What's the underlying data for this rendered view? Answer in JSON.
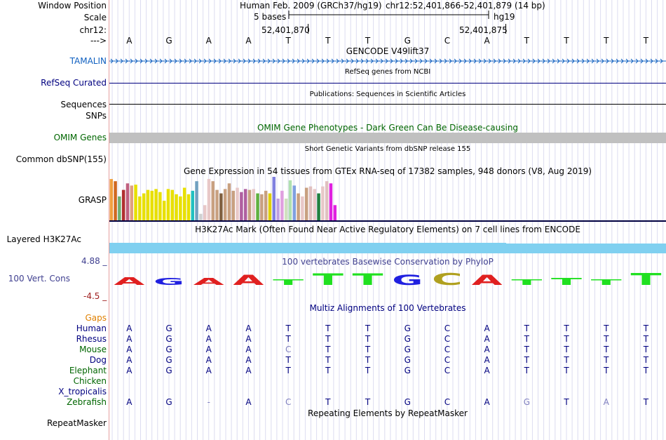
{
  "header": {
    "labels": {
      "window_position": "Window Position",
      "scale": "Scale",
      "chr": "chr12:",
      "arrow": "--->"
    },
    "assembly": "Human Feb. 2009 (GRCh37/hg19)",
    "position": "chr12:52,401,866-52,401,879 (14 bp)",
    "scale_text": "5 bases",
    "scale_db": "hg19",
    "coord1": "52,401,870",
    "coord2": "52,401,875"
  },
  "bases": [
    "A",
    "G",
    "A",
    "A",
    "T",
    "T",
    "T",
    "G",
    "C",
    "A",
    "T",
    "T",
    "T",
    "T"
  ],
  "tracks": {
    "gencode_title": "GENCODE V49lift37",
    "tamalin_label": "TAMALIN",
    "refseq_title": "RefSeq genes from NCBI",
    "refseq_label": "RefSeq Curated",
    "pubs_title": "Publications: Sequences in Scientific Articles",
    "sequences_label": "Sequences",
    "snps_label": "SNPs",
    "omim_title": "OMIM Gene Phenotypes - Dark Green Can Be Disease-causing",
    "omim_label": "OMIM Genes",
    "dbsnp_title": "Short Genetic Variants from dbSNP release 155",
    "dbsnp_label": "Common dbSNP(155)",
    "gtex_title": "Gene Expression in 54 tissues from GTEx RNA-seq of 17382 samples, 948 donors (V8, Aug 2019)",
    "grasp_label": "GRASP",
    "h3k_title": "H3K27Ac Mark (Often Found Near Active Regulatory Elements) on 7 cell lines from ENCODE",
    "h3k_label": "Layered H3K27Ac",
    "cons_title": "100 vertebrates Basewise Conservation by PhyloP",
    "cons_label": "100 Vert. Cons",
    "cons_max": "4.88 _",
    "cons_min": "-4.5 _",
    "multiz_title": "Multiz Alignments of 100 Vertebrates",
    "repeat_title": "Repeating Elements by RepeatMasker",
    "repeat_label": "RepeatMasker",
    "gaps_label": "Gaps"
  },
  "gtex_values": [
    0.95,
    0.9,
    0.55,
    0.7,
    0.85,
    0.8,
    0.82,
    0.55,
    0.62,
    0.7,
    0.68,
    0.72,
    0.65,
    0.45,
    0.72,
    0.7,
    0.6,
    0.55,
    0.75,
    0.6,
    0.68,
    0.9,
    0.15,
    0.35,
    0.95,
    0.9,
    0.7,
    0.62,
    0.72,
    0.85,
    0.68,
    0.75,
    0.65,
    0.72,
    0.7,
    0.72,
    0.62,
    0.6,
    0.68,
    0.62,
    1.0,
    0.5,
    0.68,
    0.5,
    0.92,
    0.8,
    0.62,
    0.55,
    0.75,
    0.78,
    0.72,
    0.62,
    0.78,
    0.9,
    0.85,
    0.35
  ],
  "gtex_colors": [
    "#f0a040",
    "#d06820",
    "#70b070",
    "#b03030",
    "#c06080",
    "#e0a080",
    "#e8e000",
    "#e8e000",
    "#e8e000",
    "#e8e000",
    "#e8e000",
    "#e8e000",
    "#e8e000",
    "#e8e000",
    "#e8e000",
    "#e8e000",
    "#e8e000",
    "#e8e000",
    "#e8e000",
    "#e8e000",
    "#20c0c0",
    "#70a0c0",
    "#d0d0d0",
    "#e8c8c8",
    "#e8c8c8",
    "#c8a080",
    "#c8a080",
    "#806040",
    "#c8a080",
    "#c8a080",
    "#c8a080",
    "#e8c8c8",
    "#b060a0",
    "#b060a0",
    "#c8a080",
    "#e8c8c8",
    "#60b040",
    "#c8a080",
    "#c8a080",
    "#e0d000",
    "#8080e0",
    "#c0a0e0",
    "#e0a0e0",
    "#d0e0c0",
    "#b0e0b0",
    "#80a0e0",
    "#c8a080",
    "#e8c8c8",
    "#c8a080",
    "#e0c0c0",
    "#e8c8c8",
    "#208040",
    "#e8c8c8",
    "#e0c0c0",
    "#e020e0",
    "#e020e0"
  ],
  "conservation": {
    "bases": [
      "A",
      "G",
      "A",
      "A",
      "T",
      "T",
      "T",
      "G",
      "C",
      "A",
      "T",
      "T",
      "T",
      "T"
    ],
    "scores": [
      0.25,
      0.2,
      0.2,
      0.35,
      0.12,
      0.42,
      0.42,
      0.35,
      0.45,
      0.35,
      0.12,
      0.18,
      0.12,
      0.45
    ],
    "colors": {
      "A": "#e02020",
      "G": "#2020e0",
      "C": "#b0a020",
      "T": "#20e020"
    }
  },
  "multiz": {
    "species": [
      {
        "name": "Human",
        "color": "#000080",
        "seq": [
          "A",
          "G",
          "A",
          "A",
          "T",
          "T",
          "T",
          "G",
          "C",
          "A",
          "T",
          "T",
          "T",
          "T"
        ],
        "dim": []
      },
      {
        "name": "Rhesus",
        "color": "#000080",
        "seq": [
          "A",
          "G",
          "A",
          "A",
          "T",
          "T",
          "T",
          "G",
          "C",
          "A",
          "T",
          "T",
          "T",
          "T"
        ],
        "dim": []
      },
      {
        "name": "Mouse",
        "color": "#006600",
        "seq": [
          "A",
          "G",
          "A",
          "A",
          "C",
          "T",
          "T",
          "G",
          "C",
          "A",
          "T",
          "T",
          "T",
          "T"
        ],
        "dim": [
          4
        ]
      },
      {
        "name": "Dog",
        "color": "#000080",
        "seq": [
          "A",
          "G",
          "A",
          "A",
          "T",
          "T",
          "T",
          "G",
          "C",
          "A",
          "T",
          "T",
          "T",
          "T"
        ],
        "dim": []
      },
      {
        "name": "Elephant",
        "color": "#006600",
        "seq": [
          "A",
          "G",
          "A",
          "A",
          "T",
          "T",
          "T",
          "G",
          "C",
          "A",
          "T",
          "T",
          "T",
          "T"
        ],
        "dim": []
      },
      {
        "name": "Chicken",
        "color": "#006600",
        "seq": [],
        "dim": []
      },
      {
        "name": "X_tropicalis",
        "color": "#000080",
        "seq": [],
        "dim": []
      },
      {
        "name": "Zebrafish",
        "color": "#006600",
        "seq": [
          "A",
          "G",
          "-",
          "A",
          "C",
          "T",
          "T",
          "G",
          "C",
          "A",
          "G",
          "T",
          "A",
          "T"
        ],
        "dim": [
          2,
          4,
          10,
          12
        ]
      }
    ]
  },
  "colors": {
    "tamalin": "#1060c0",
    "refseq": "#000080",
    "omim": "#006600",
    "gaps": "#e08000",
    "cons": "#404090",
    "h3k": "#80d0f0",
    "conslabel": "#4040a0"
  }
}
